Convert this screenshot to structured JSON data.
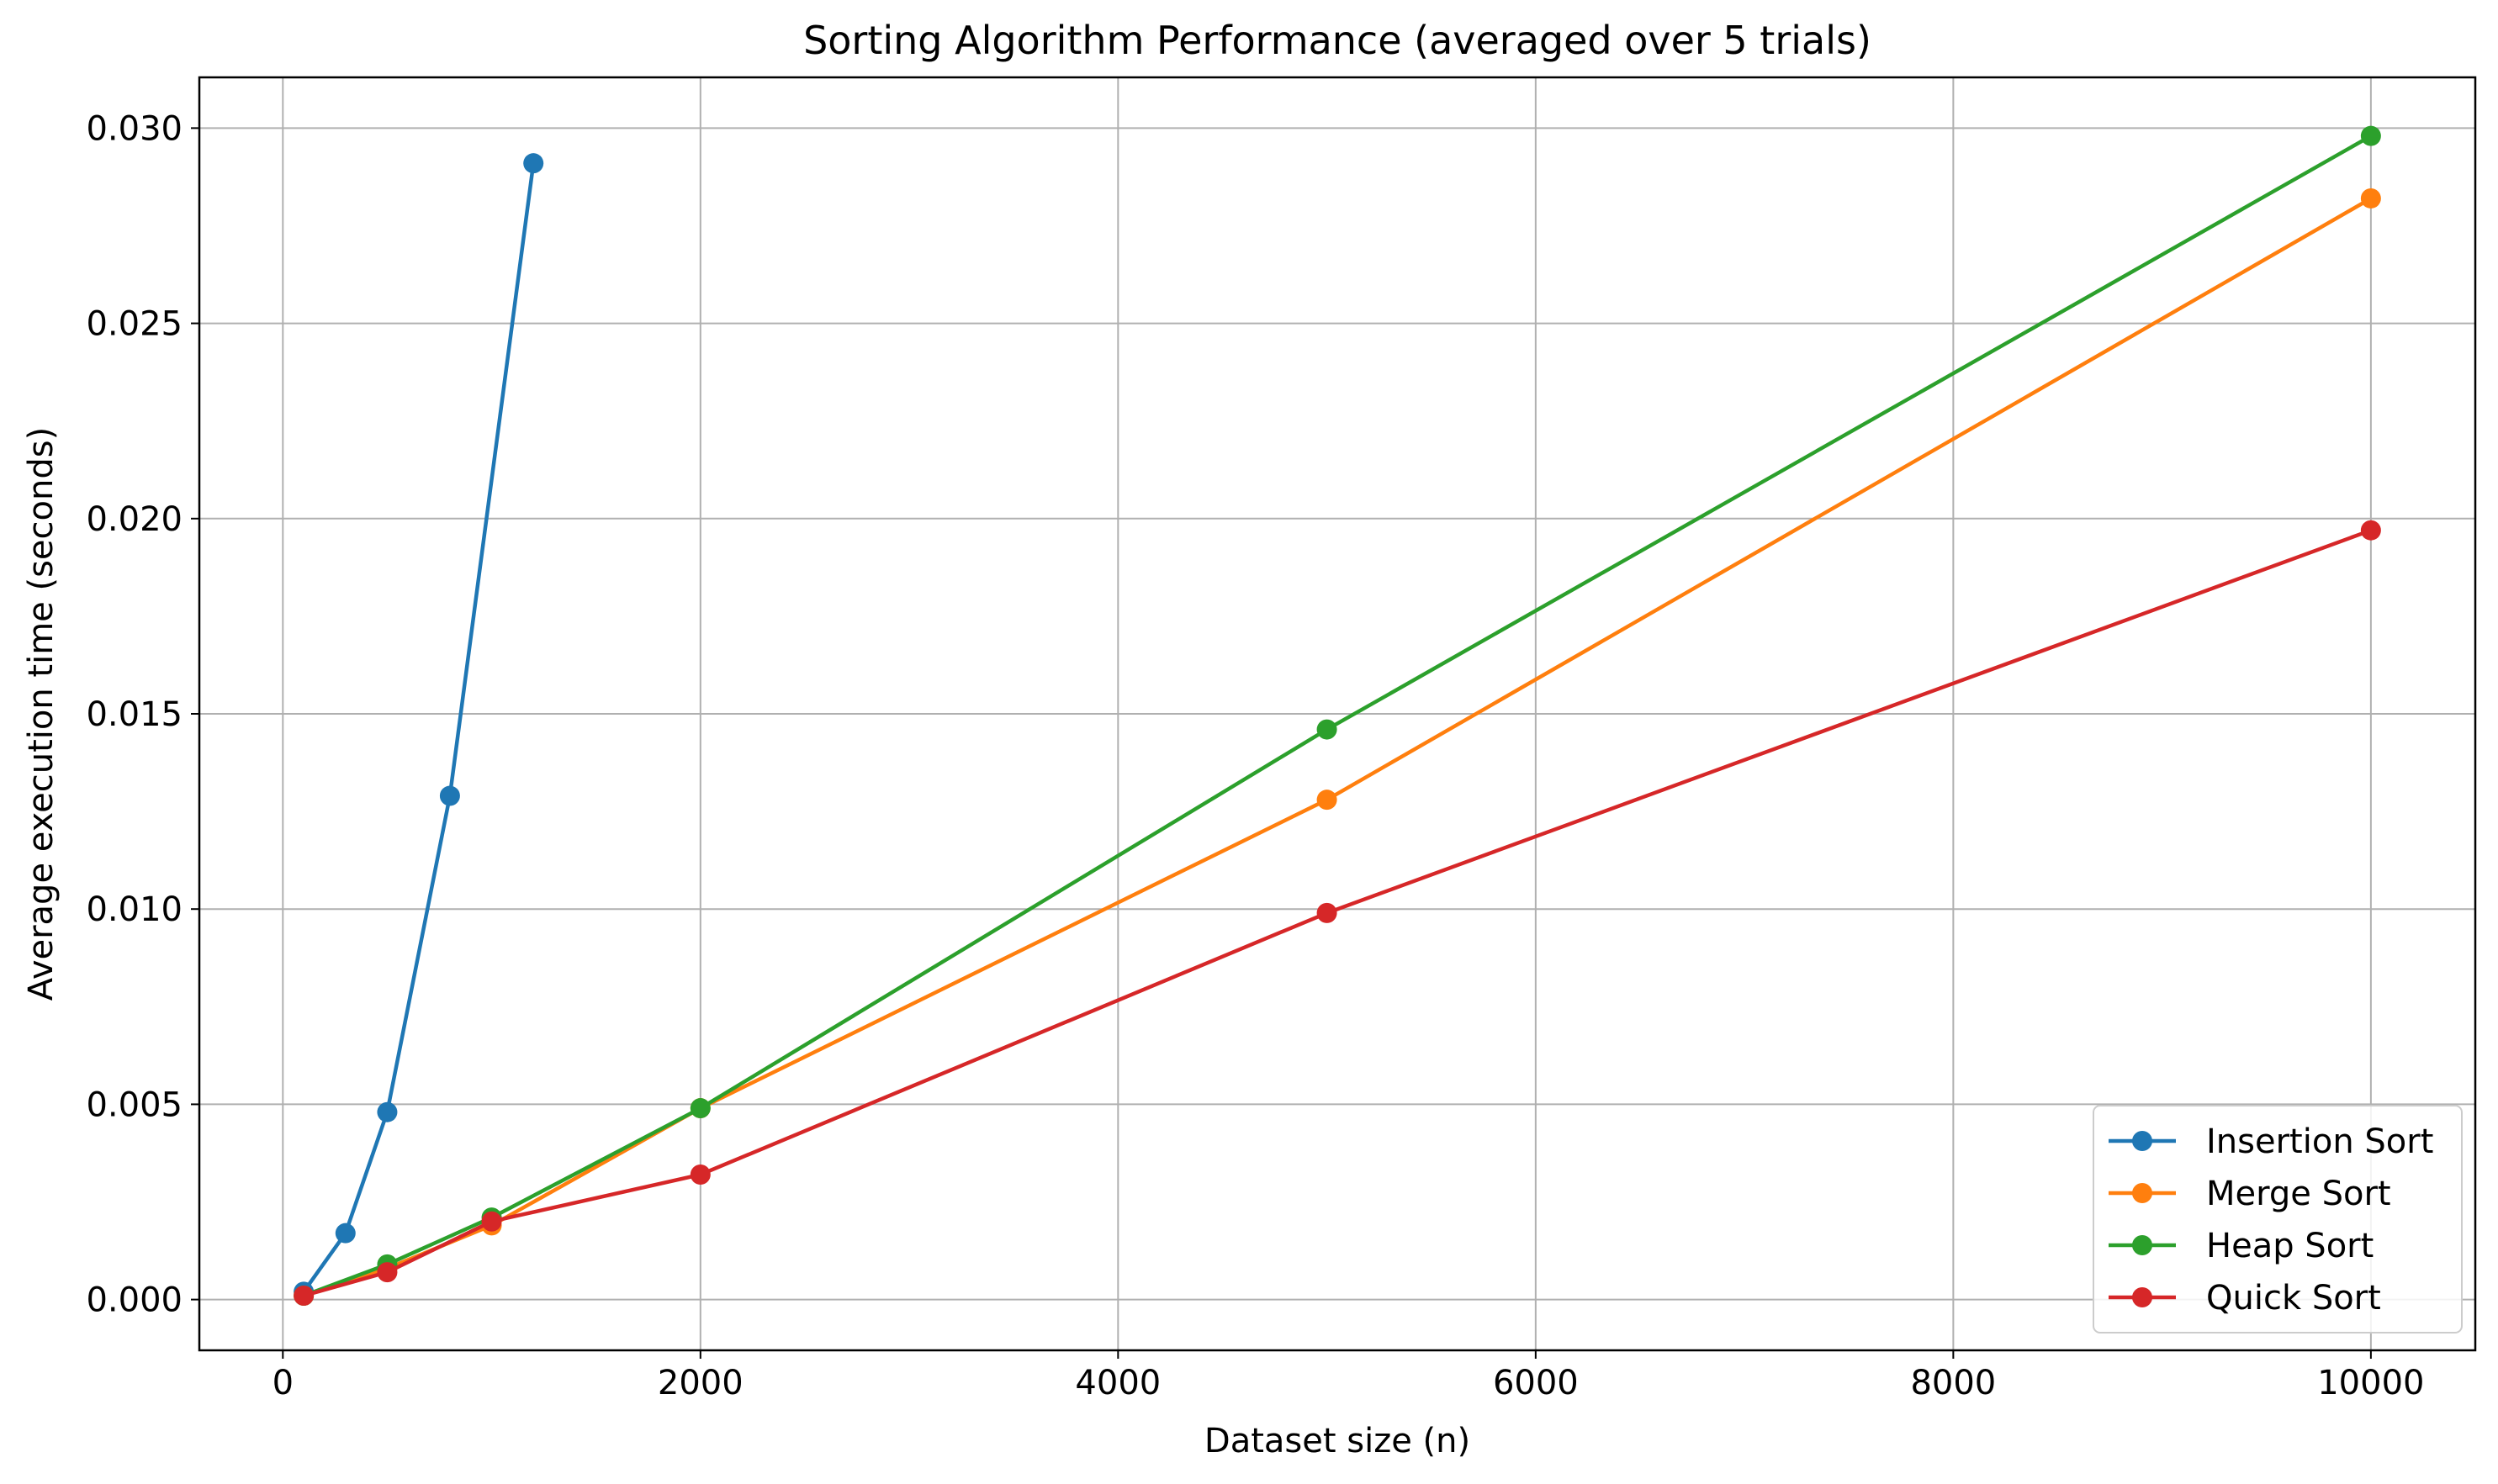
{
  "chart_data": {
    "type": "line",
    "title": "Sorting Algorithm Performance (averaged over 5 trials)",
    "xlabel": "Dataset size (n)",
    "ylabel": "Average execution time (seconds)",
    "xlim": [
      -400,
      10500
    ],
    "ylim": [
      -0.0013,
      0.0313
    ],
    "xticks": [
      0,
      2000,
      4000,
      6000,
      8000,
      10000
    ],
    "xtick_labels": [
      "0",
      "2000",
      "4000",
      "6000",
      "8000",
      "10000"
    ],
    "yticks": [
      0.0,
      0.005,
      0.01,
      0.015,
      0.02,
      0.025,
      0.03
    ],
    "ytick_labels": [
      "0.000",
      "0.005",
      "0.010",
      "0.015",
      "0.020",
      "0.025",
      "0.030"
    ],
    "grid": true,
    "legend_position": "bottom-right",
    "series": [
      {
        "name": "Insertion Sort",
        "color": "#1f77b4",
        "x": [
          100,
          300,
          500,
          800,
          1200
        ],
        "y": [
          0.0002,
          0.0017,
          0.0048,
          0.0129,
          0.0291
        ]
      },
      {
        "name": "Merge Sort",
        "color": "#ff7f0e",
        "x": [
          100,
          500,
          1000,
          2000,
          5000,
          10000
        ],
        "y": [
          0.0001,
          0.0008,
          0.0019,
          0.0049,
          0.0128,
          0.0282
        ]
      },
      {
        "name": "Heap Sort",
        "color": "#2ca02c",
        "x": [
          100,
          500,
          1000,
          2000,
          5000,
          10000
        ],
        "y": [
          0.0001,
          0.0009,
          0.0021,
          0.0049,
          0.0146,
          0.0298
        ]
      },
      {
        "name": "Quick Sort",
        "color": "#d62728",
        "x": [
          100,
          500,
          1000,
          2000,
          5000,
          10000
        ],
        "y": [
          0.0001,
          0.0007,
          0.002,
          0.0032,
          0.0099,
          0.0197
        ]
      }
    ]
  }
}
